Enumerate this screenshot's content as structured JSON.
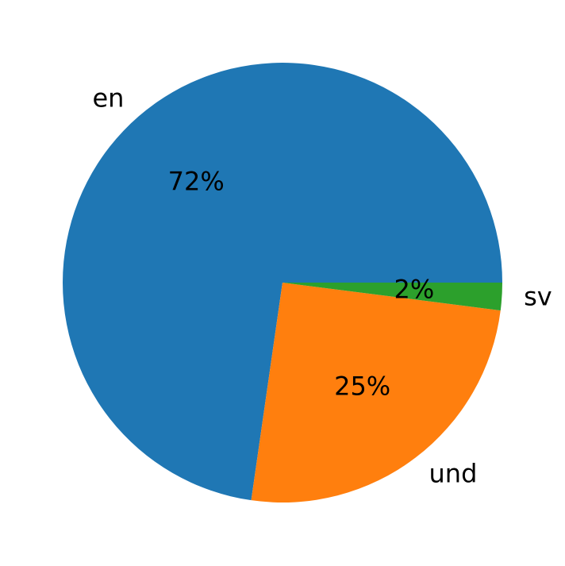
{
  "chart_data": {
    "type": "pie",
    "categories": [
      "en",
      "und",
      "sv"
    ],
    "values": [
      72,
      25,
      2
    ],
    "value_labels": [
      "72%",
      "25%",
      "2%"
    ],
    "colors": [
      "#1f77b4",
      "#ff7f0e",
      "#2ca02c"
    ],
    "start_angle": 0,
    "direction": "counterclockwise"
  }
}
